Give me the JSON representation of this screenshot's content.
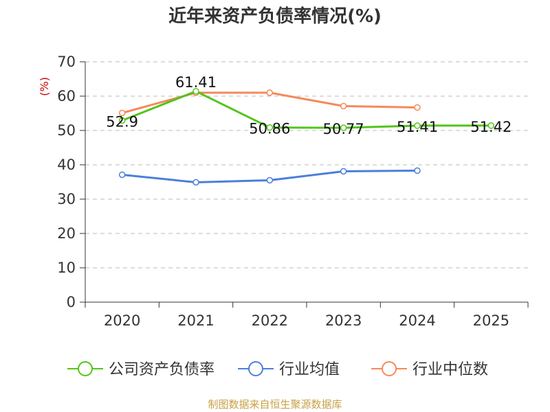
{
  "chart_data": {
    "type": "line",
    "title": "近年来资产负债率情况(%)",
    "ylabel": "(%)",
    "categories": [
      "2020",
      "2021",
      "2022",
      "2023",
      "2024",
      "2025"
    ],
    "ylim": [
      0,
      70
    ],
    "yticks": [
      0,
      10,
      20,
      30,
      40,
      50,
      60,
      70
    ],
    "grid": true,
    "legend_position": "bottom",
    "series": [
      {
        "name": "公司资产负债率",
        "color": "#52c41a",
        "values": [
          52.9,
          61.41,
          50.86,
          50.77,
          51.41,
          51.42
        ],
        "labels": [
          "52.9",
          "61.41",
          "50.86",
          "50.77",
          "51.41",
          "51.42"
        ]
      },
      {
        "name": "行业均值",
        "color": "#4a7fdb",
        "values": [
          37.1,
          34.9,
          35.5,
          38.1,
          38.3,
          null
        ],
        "labels": []
      },
      {
        "name": "行业中位数",
        "color": "#f5895a",
        "values": [
          55.1,
          61.0,
          61.0,
          57.1,
          56.7,
          null
        ],
        "labels": []
      }
    ]
  },
  "footer": "制图数据来自恒生聚源数据库"
}
